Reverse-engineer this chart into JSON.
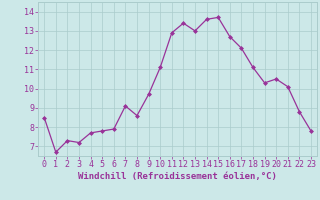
{
  "x": [
    0,
    1,
    2,
    3,
    4,
    5,
    6,
    7,
    8,
    9,
    10,
    11,
    12,
    13,
    14,
    15,
    16,
    17,
    18,
    19,
    20,
    21,
    22,
    23
  ],
  "y": [
    8.5,
    6.7,
    7.3,
    7.2,
    7.7,
    7.8,
    7.9,
    9.1,
    8.6,
    9.7,
    11.1,
    12.9,
    13.4,
    13.0,
    13.6,
    13.7,
    12.7,
    12.1,
    11.1,
    10.3,
    10.5,
    10.1,
    8.8,
    7.8
  ],
  "line_color": "#993399",
  "marker": "D",
  "markersize": 2.0,
  "linewidth": 0.9,
  "bg_color": "#cce8e8",
  "grid_color": "#aacccc",
  "xlabel": "Windchill (Refroidissement éolien,°C)",
  "xlabel_fontsize": 6.5,
  "ylabel_ticks": [
    7,
    8,
    9,
    10,
    11,
    12,
    13,
    14
  ],
  "xtick_labels": [
    "0",
    "1",
    "2",
    "3",
    "4",
    "5",
    "6",
    "7",
    "8",
    "9",
    "10",
    "11",
    "12",
    "13",
    "14",
    "15",
    "16",
    "17",
    "18",
    "19",
    "20",
    "21",
    "22",
    "23"
  ],
  "ylim": [
    6.5,
    14.5
  ],
  "xlim": [
    -0.5,
    23.5
  ],
  "tick_fontsize": 6.0,
  "tick_color": "#993399",
  "label_color": "#993399"
}
